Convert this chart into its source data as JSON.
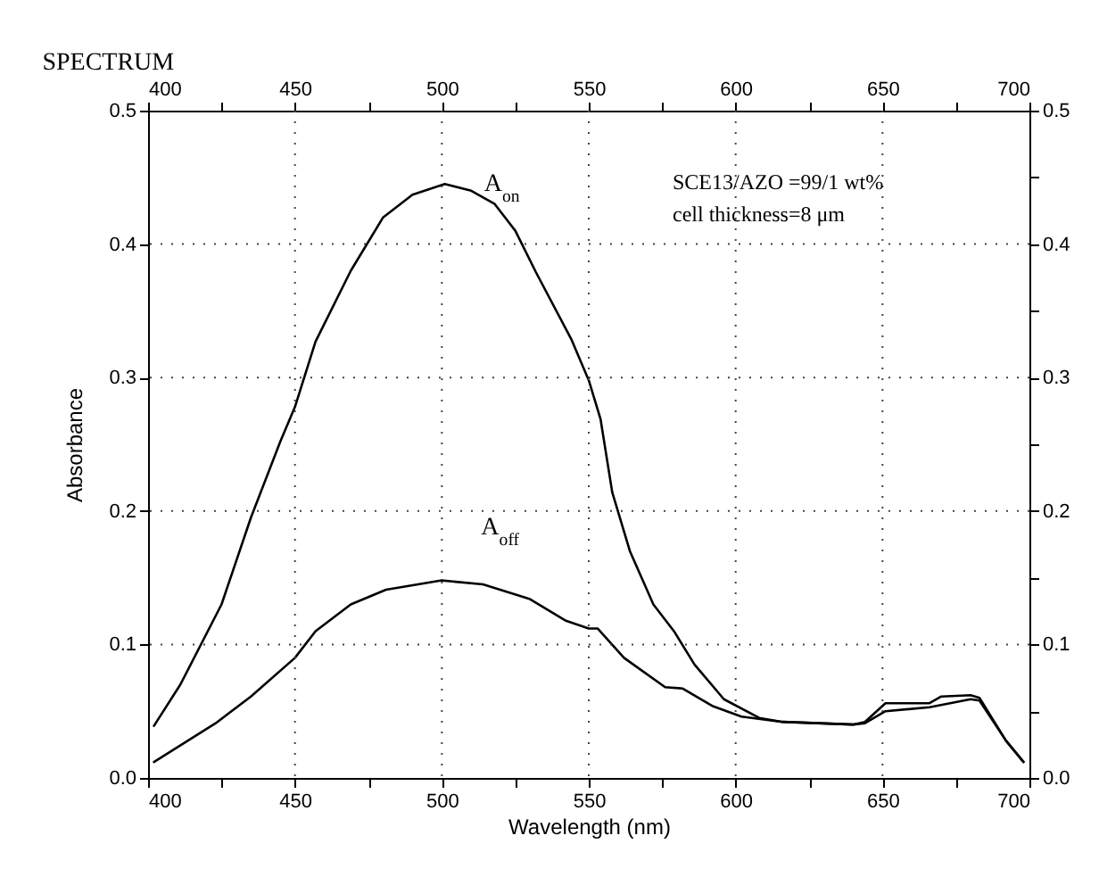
{
  "chart_data": {
    "type": "line",
    "title": "SPECTRUM",
    "xlabel": "Wavelength (nm)",
    "ylabel": "Absorbance",
    "annotations": [
      "SCE13/AZO =99/1 wt%",
      "cell thickness=8 μm"
    ],
    "x": [
      402,
      411,
      425,
      435,
      445,
      450,
      457,
      469,
      480,
      490,
      501,
      510,
      518,
      525,
      532,
      544,
      550,
      554,
      558,
      564,
      572,
      579,
      586,
      596,
      608,
      616,
      640,
      644,
      651,
      666,
      670,
      680,
      683,
      692,
      698
    ],
    "series": [
      {
        "name": "A$_{on}$",
        "color": "#000000",
        "values": [
          0.039,
          0.07,
          0.13,
          0.195,
          0.252,
          0.278,
          0.327,
          0.38,
          0.42,
          0.437,
          0.445,
          0.44,
          0.43,
          0.41,
          0.379,
          0.329,
          0.298,
          0.269,
          0.214,
          0.17,
          0.13,
          0.11,
          0.085,
          0.059,
          0.045,
          0.042,
          0.04,
          0.042,
          0.056,
          0.056,
          0.061,
          0.062,
          0.06,
          0.028,
          0.012
        ]
      },
      {
        "name": "A$_{off}$",
        "color": "#000000",
        "x": [
          402,
          423,
          435,
          450,
          457,
          469,
          481,
          500,
          514,
          530,
          542,
          550,
          553,
          562,
          576,
          582,
          592,
          602,
          616,
          640,
          644,
          651,
          666,
          680,
          683,
          692,
          698
        ],
        "values": [
          0.012,
          0.041,
          0.061,
          0.09,
          0.11,
          0.13,
          0.141,
          0.148,
          0.145,
          0.134,
          0.118,
          0.112,
          0.112,
          0.09,
          0.068,
          0.067,
          0.054,
          0.046,
          0.042,
          0.04,
          0.041,
          0.05,
          0.053,
          0.059,
          0.058,
          0.028,
          0.012
        ]
      }
    ],
    "xlim": [
      400,
      700
    ],
    "xticks": [
      400,
      {
        "value": 425,
        "label": null
      },
      450,
      {
        "value": 475,
        "label": null
      },
      500,
      {
        "value": 525,
        "label": null
      },
      550,
      {
        "value": 575,
        "label": null
      },
      600,
      {
        "value": 625,
        "label": null
      },
      650,
      {
        "value": 675,
        "label": null
      },
      700
    ],
    "x2lim": [
      400,
      700
    ],
    "x2ticks": [
      400,
      {
        "value": 425,
        "label": null
      },
      450,
      {
        "value": 475,
        "label": null
      },
      500,
      {
        "value": 525,
        "label": null
      },
      550,
      {
        "value": 575,
        "label": null
      },
      600,
      {
        "value": 625,
        "label": null
      },
      650,
      {
        "value": 675,
        "label": null
      },
      700
    ],
    "ylim": [
      0,
      0.5
    ],
    "yticks": [
      {
        "value": 0,
        "label": "0.0"
      },
      {
        "value": 0.05,
        "label": null
      },
      0.1,
      {
        "value": 0.15,
        "label": null
      },
      0.2,
      {
        "value": 0.25,
        "label": null
      },
      0.3,
      {
        "value": 0.35,
        "label": null
      },
      0.4,
      {
        "value": 0.45,
        "label": null
      },
      0.5
    ],
    "y2lim": [
      0,
      0.5
    ],
    "y2ticks": [
      {
        "value": 0,
        "label": "0.0"
      },
      {
        "value": 0.05,
        "label": null
      },
      0.1,
      {
        "value": 0.15,
        "label": null
      },
      0.2,
      {
        "value": 0.25,
        "label": null
      },
      0.3,
      {
        "value": 0.35,
        "label": null
      },
      0.4,
      {
        "value": 0.45,
        "label": null
      },
      0.5
    ],
    "grid": true,
    "legend": false,
    "marker": "none",
    "line_style": "solid"
  }
}
